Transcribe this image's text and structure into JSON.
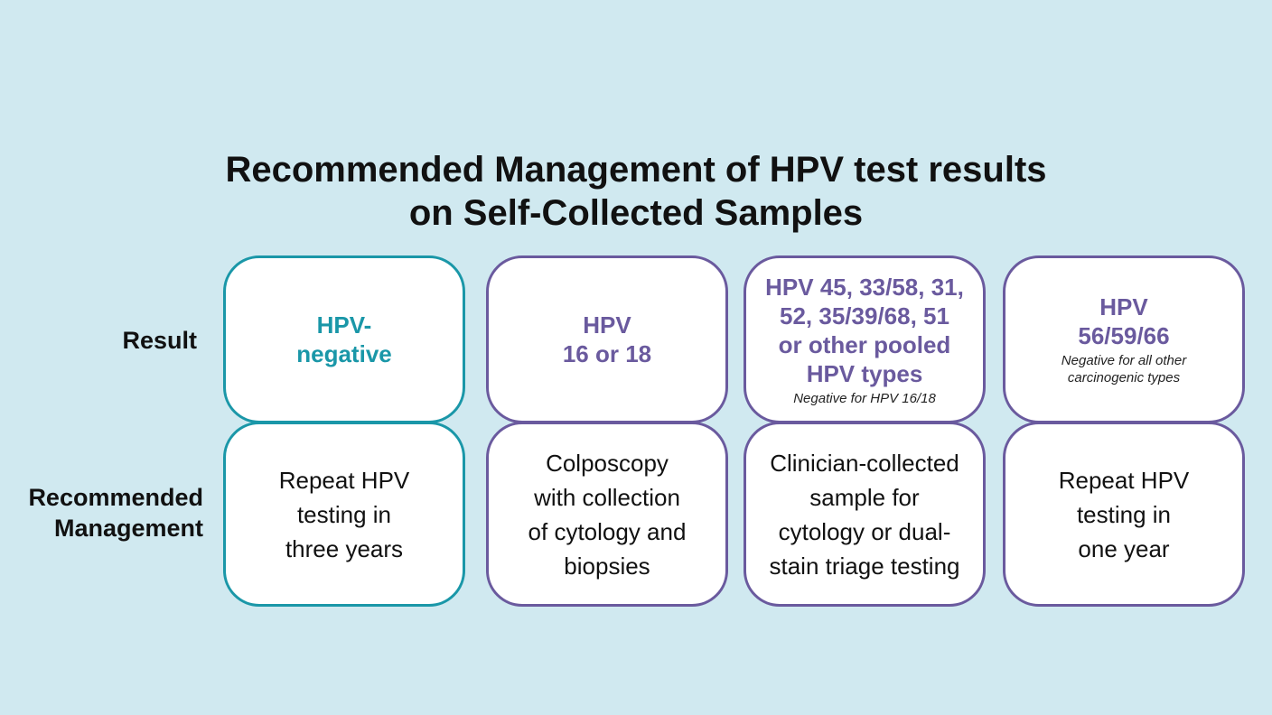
{
  "title": {
    "lines": [
      "Recommended Management of HPV test results",
      "on Self-Collected Samples"
    ]
  },
  "row_labels": {
    "result": [
      "Result"
    ],
    "management": [
      "Recommended",
      "Management"
    ]
  },
  "columns": [
    {
      "color": "#1a97a8",
      "result": [
        "HPV-",
        "negative"
      ],
      "management": [
        "Repeat HPV",
        "testing in",
        "three years"
      ]
    },
    {
      "color": "#6a5a9e",
      "result": [
        "HPV",
        "16 or 18"
      ],
      "management": [
        "Colposcopy",
        "with collection",
        "of cytology and",
        "biopsies"
      ]
    },
    {
      "color": "#6a5a9e",
      "result": [
        "HPV 45, 33/58, 31,",
        "52, 35/39/68, 51",
        "or other pooled",
        "HPV types"
      ],
      "note": [
        "Negative for HPV 16/18"
      ],
      "management": [
        "Clinician-collected",
        "sample for",
        "cytology or dual-",
        "stain triage testing"
      ]
    },
    {
      "color": "#6a5a9e",
      "result": [
        "HPV",
        "56/59/66"
      ],
      "note": [
        "Negative for all other",
        "carcinogenic types"
      ],
      "management": [
        "Repeat HPV",
        "testing in",
        "one year"
      ]
    }
  ]
}
